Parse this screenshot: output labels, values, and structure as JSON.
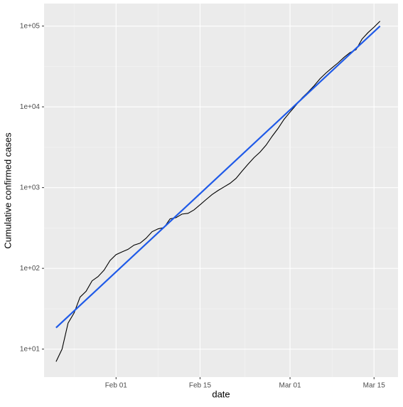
{
  "chart_data": {
    "type": "line",
    "x_label": "date",
    "y_label": "Cumulative confirmed cases",
    "log_y": true,
    "grid": true,
    "background": "#ebebeb",
    "xlim": [
      "Jan 20",
      "Mar 19"
    ],
    "xticks": [
      "Feb 01",
      "Feb 15",
      "Mar 01",
      "Mar 15"
    ],
    "ylim": [
      4.5,
      190000
    ],
    "yticks": [
      {
        "value": 10,
        "label": "1e+01"
      },
      {
        "value": 100,
        "label": "1e+02"
      },
      {
        "value": 1000,
        "label": "1e+03"
      },
      {
        "value": 10000,
        "label": "1e+04"
      },
      {
        "value": 100000,
        "label": "1e+05"
      }
    ],
    "series": [
      {
        "color": "#000000",
        "x": [
          "Jan 22",
          "Jan 23",
          "Jan 24",
          "Jan 25",
          "Jan 26",
          "Jan 27",
          "Jan 28",
          "Jan 29",
          "Jan 30",
          "Jan 31",
          "Feb 01",
          "Feb 02",
          "Feb 03",
          "Feb 04",
          "Feb 05",
          "Feb 06",
          "Feb 07",
          "Feb 08",
          "Feb 09",
          "Feb 10",
          "Feb 11",
          "Feb 12",
          "Feb 13",
          "Feb 14",
          "Feb 15",
          "Feb 16",
          "Feb 17",
          "Feb 18",
          "Feb 19",
          "Feb 20",
          "Feb 21",
          "Feb 22",
          "Feb 23",
          "Feb 24",
          "Feb 25",
          "Feb 26",
          "Feb 27",
          "Feb 28",
          "Feb 29",
          "Mar 01",
          "Mar 02",
          "Mar 03",
          "Mar 04",
          "Mar 05",
          "Mar 06",
          "Mar 07",
          "Mar 08",
          "Mar 09",
          "Mar 10",
          "Mar 11",
          "Mar 12",
          "Mar 13",
          "Mar 14",
          "Mar 15",
          "Mar 16"
        ],
        "values": [
          7,
          10,
          21,
          28,
          44,
          52,
          70,
          79,
          95,
          125,
          148,
          160,
          172,
          194,
          205,
          236,
          284,
          308,
          320,
          410,
          425,
          470,
          480,
          530,
          612,
          710,
          820,
          920,
          1020,
          1130,
          1300,
          1600,
          1950,
          2350,
          2750,
          3350,
          4300,
          5400,
          7000,
          8600,
          10500,
          12900,
          15200,
          18200,
          22300,
          26300,
          30400,
          35000,
          41000,
          47000,
          51000,
          69000,
          83000,
          97000,
          115000
        ]
      },
      {
        "color": "#1f5ae8",
        "x": [
          "Jan 22",
          "Mar 16"
        ],
        "values": [
          18.4,
          100000
        ]
      }
    ]
  }
}
